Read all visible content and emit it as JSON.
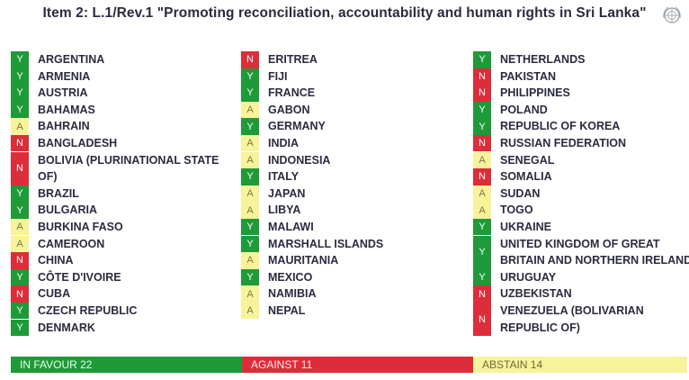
{
  "title": "Item 2: L.1/Rev.1 \"Promoting reconciliation, accountability and human rights in Sri Lanka\"",
  "colors": {
    "yes": "#1e9a38",
    "no": "#dc2d3a",
    "abstain": "#f8f39a"
  },
  "columns": [
    [
      {
        "vote": "Y",
        "name": "ARGENTINA"
      },
      {
        "vote": "Y",
        "name": "ARMENIA"
      },
      {
        "vote": "Y",
        "name": "AUSTRIA"
      },
      {
        "vote": "Y",
        "name": "BAHAMAS"
      },
      {
        "vote": "A",
        "name": "BAHRAIN"
      },
      {
        "vote": "N",
        "name": "BANGLADESH"
      },
      {
        "vote": "N",
        "name": "BOLIVIA (PLURINATIONAL STATE",
        "name2": "OF)"
      },
      {
        "vote": "Y",
        "name": "BRAZIL"
      },
      {
        "vote": "Y",
        "name": "BULGARIA"
      },
      {
        "vote": "A",
        "name": "BURKINA FASO"
      },
      {
        "vote": "A",
        "name": "CAMEROON"
      },
      {
        "vote": "N",
        "name": "CHINA"
      },
      {
        "vote": "Y",
        "name": "CÔTE D'IVOIRE"
      },
      {
        "vote": "N",
        "name": "CUBA"
      },
      {
        "vote": "Y",
        "name": "CZECH REPUBLIC"
      },
      {
        "vote": "Y",
        "name": "DENMARK"
      }
    ],
    [
      {
        "vote": "N",
        "name": "ERITREA"
      },
      {
        "vote": "Y",
        "name": "FIJI"
      },
      {
        "vote": "Y",
        "name": "FRANCE"
      },
      {
        "vote": "A",
        "name": "GABON"
      },
      {
        "vote": "Y",
        "name": "GERMANY"
      },
      {
        "vote": "A",
        "name": "INDIA"
      },
      {
        "vote": "A",
        "name": "INDONESIA"
      },
      {
        "vote": "Y",
        "name": "ITALY"
      },
      {
        "vote": "A",
        "name": "JAPAN"
      },
      {
        "vote": "A",
        "name": "LIBYA"
      },
      {
        "vote": "Y",
        "name": "MALAWI"
      },
      {
        "vote": "Y",
        "name": "MARSHALL ISLANDS"
      },
      {
        "vote": "A",
        "name": "MAURITANIA"
      },
      {
        "vote": "Y",
        "name": "MEXICO"
      },
      {
        "vote": "A",
        "name": "NAMIBIA"
      },
      {
        "vote": "A",
        "name": "NEPAL"
      }
    ],
    [
      {
        "vote": "Y",
        "name": "NETHERLANDS"
      },
      {
        "vote": "N",
        "name": "PAKISTAN"
      },
      {
        "vote": "N",
        "name": "PHILIPPINES"
      },
      {
        "vote": "Y",
        "name": "POLAND"
      },
      {
        "vote": "Y",
        "name": "REPUBLIC OF KOREA"
      },
      {
        "vote": "N",
        "name": "RUSSIAN FEDERATION"
      },
      {
        "vote": "A",
        "name": "SENEGAL"
      },
      {
        "vote": "N",
        "name": "SOMALIA"
      },
      {
        "vote": "A",
        "name": "SUDAN"
      },
      {
        "vote": "A",
        "name": "TOGO"
      },
      {
        "vote": "Y",
        "name": "UKRAINE"
      },
      {
        "vote": "Y",
        "name": "UNITED KINGDOM OF GREAT",
        "name2": "BRITAIN AND NORTHERN IRELAND"
      },
      {
        "vote": "Y",
        "name": "URUGUAY"
      },
      {
        "vote": "N",
        "name": "UZBEKISTAN"
      },
      {
        "vote": "N",
        "name": "VENEZUELA (BOLIVARIAN",
        "name2": "REPUBLIC OF)"
      }
    ]
  ],
  "totals": {
    "favour": "IN FAVOUR 22",
    "against": "AGAINST 11",
    "abstain": "ABSTAIN 14"
  }
}
